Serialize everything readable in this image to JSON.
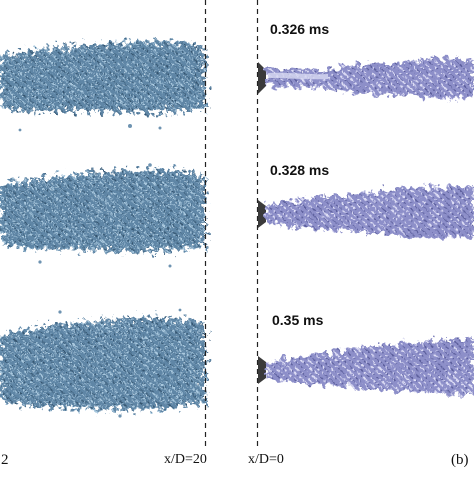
{
  "figure": {
    "right_panel": {
      "timestamps": [
        "0.326 ms",
        "0.328 ms",
        "0.35 ms"
      ],
      "panel_label_visible": "(b)"
    },
    "axis_markers": {
      "left_marker": "x/D=20",
      "right_marker": "x/D=0"
    },
    "left_panel_label_fragment": "2",
    "colors": {
      "left_jet_fill": "#5f86a6",
      "left_jet_highlight": "#9cc0da",
      "right_jet_fill": "#8d8fc9",
      "right_jet_highlight": "#d5d7f2",
      "dashed_line": "#222222"
    }
  }
}
